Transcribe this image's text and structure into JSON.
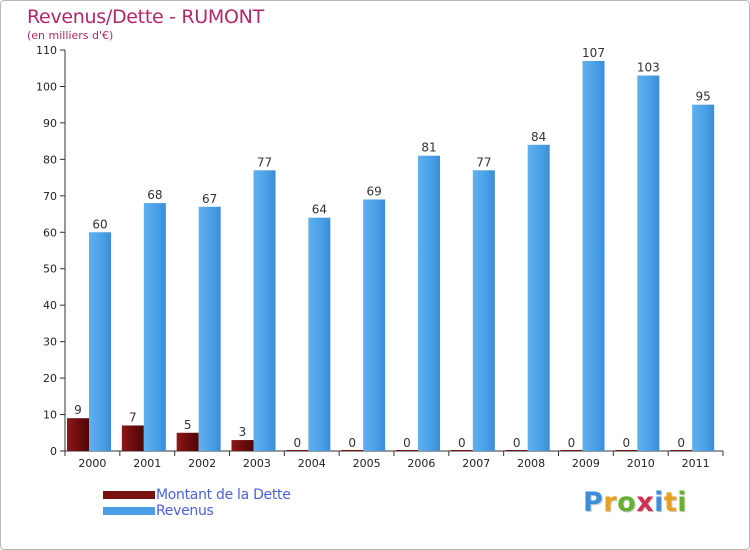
{
  "chart_data": {
    "type": "bar",
    "title": "Revenus/Dette - RUMONT",
    "subtitle": "(en milliers d'€)",
    "categories": [
      "2000",
      "2001",
      "2002",
      "2003",
      "2004",
      "2005",
      "2006",
      "2007",
      "2008",
      "2009",
      "2010",
      "2011"
    ],
    "series": [
      {
        "name": "Montant de la Dette",
        "color": "#7a1010",
        "values": [
          9,
          7,
          5,
          3,
          0,
          0,
          0,
          0,
          0,
          0,
          0,
          0
        ]
      },
      {
        "name": "Revenus",
        "color": "#4aa0e6",
        "values": [
          60,
          68,
          67,
          77,
          64,
          69,
          81,
          77,
          84,
          107,
          103,
          95
        ]
      }
    ],
    "ylim": [
      0,
      110
    ],
    "yticks": [
      0,
      10,
      20,
      30,
      40,
      50,
      60,
      70,
      80,
      90,
      100,
      110
    ],
    "xlabel": "",
    "ylabel": "",
    "grid": false,
    "legend_position": "bottom-left"
  },
  "colors": {
    "title": "#b02868",
    "legend_text": "#4a62d8",
    "axis": "#333333"
  },
  "brand": {
    "letters": [
      "P",
      "r",
      "o",
      "x",
      "i",
      "t",
      "i"
    ],
    "colors": [
      "#3a8fd8",
      "#e8a020",
      "#68b030",
      "#d03050",
      "#3a8fd8",
      "#e8a020",
      "#68b030"
    ]
  }
}
